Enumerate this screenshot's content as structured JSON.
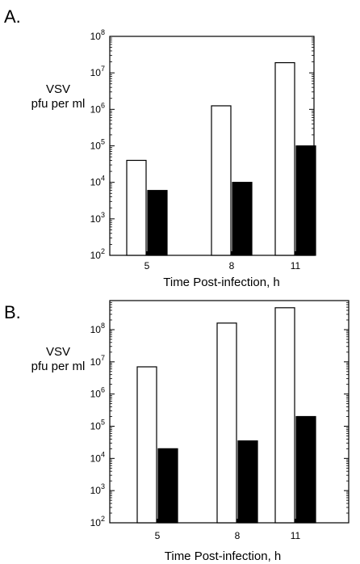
{
  "chart_data": [
    {
      "panel_label": "A.",
      "type": "bar",
      "categories": [
        "5",
        "8",
        "11"
      ],
      "series": [
        {
          "fill": "#ffffff",
          "values": [
            40000,
            1250000,
            19000000
          ]
        },
        {
          "fill": "#000000",
          "values": [
            6000,
            10000,
            100000
          ]
        }
      ],
      "ylabel": [
        "VSV",
        "pfu per ml"
      ],
      "xlabel": "Time Post-infection, h",
      "yscale": "log",
      "ylim": [
        100,
        100000000
      ],
      "ytick_exponents": [
        2,
        3,
        4,
        5,
        6,
        7,
        8
      ],
      "grid": false
    },
    {
      "panel_label": "B.",
      "type": "bar",
      "categories": [
        "5",
        "8",
        "11"
      ],
      "series": [
        {
          "fill": "#ffffff",
          "values": [
            7000000,
            160000000,
            480000000
          ]
        },
        {
          "fill": "#000000",
          "values": [
            20000,
            35000,
            200000
          ]
        }
      ],
      "ylabel": [
        "VSV",
        "pfu per ml"
      ],
      "xlabel": "Time Post-infection, h",
      "yscale": "log",
      "ylim": [
        100,
        800000000
      ],
      "ytick_exponents": [
        2,
        3,
        4,
        5,
        6,
        7,
        8
      ],
      "grid": false
    }
  ]
}
